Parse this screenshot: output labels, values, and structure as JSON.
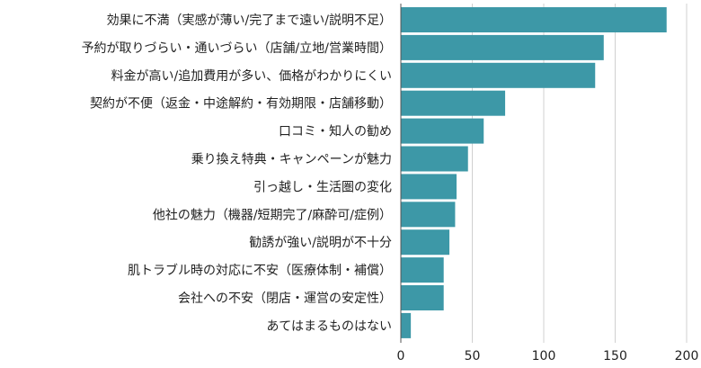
{
  "chart_data": {
    "type": "bar",
    "orientation": "horizontal",
    "categories": [
      "効果に不満（実感が薄い/完了まで遠い/説明不足）",
      "予約が取りづらい・通いづらい（店舗/立地/営業時間）",
      "料金が高い/追加費用が多い、価格がわかりにくい",
      "契約が不便（返金・中途解約・有効期限・店舗移動）",
      "口コミ・知人の勧め",
      "乗り換え特典・キャンペーンが魅力",
      "引っ越し・生活圏の変化",
      "他社の魅力（機器/短期完了/麻酔可/症例）",
      "勧誘が強い/説明が不十分",
      "肌トラブル時の対応に不安（医療体制・補償）",
      "会社への不安（閉店・運営の安定性）",
      "あてはまるものはない"
    ],
    "values": [
      186,
      142,
      136,
      73,
      58,
      47,
      39,
      38,
      34,
      30,
      30,
      7
    ],
    "xlim": [
      0,
      200
    ],
    "xticks": [
      0,
      50,
      100,
      150,
      200
    ],
    "grid": true,
    "bar_color": "#3d98a7",
    "grid_color": "#d0d0d0",
    "axis_color": "#555555"
  }
}
